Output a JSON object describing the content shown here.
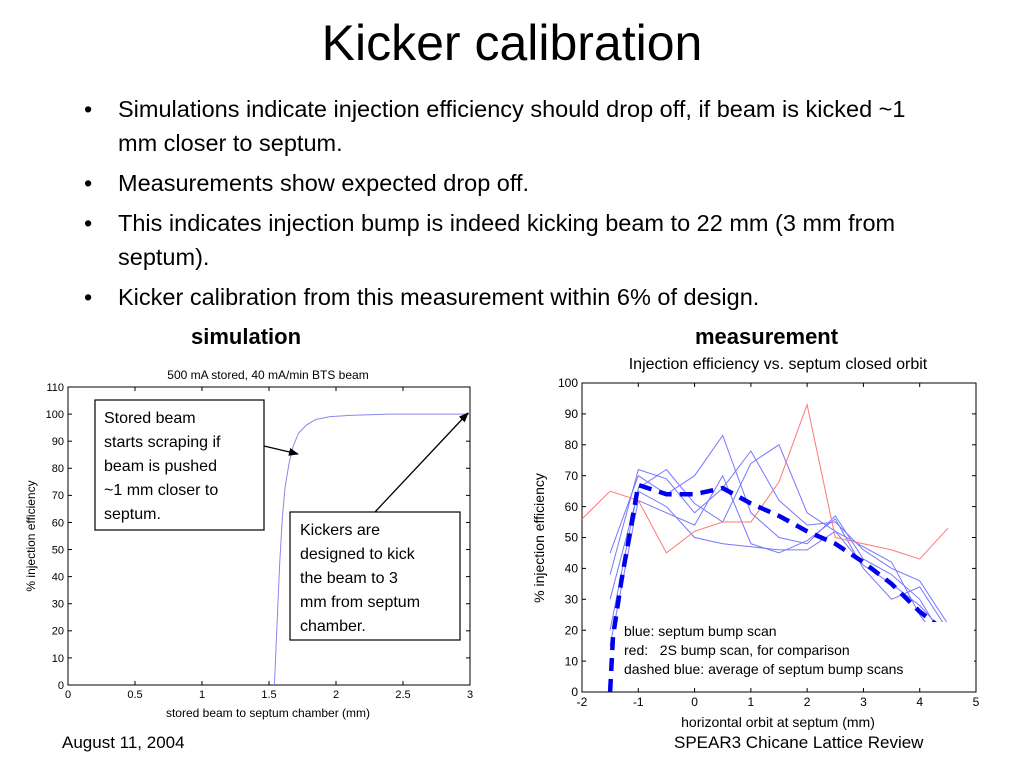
{
  "slide": {
    "title": "Kicker calibration",
    "bullets": [
      "Simulations indicate injection efficiency should drop off, if beam is kicked ~1 mm closer to septum.",
      "Measurements show expected drop off.",
      "This indicates injection bump is indeed kicking beam to 22 mm (3 mm from septum).",
      "Kicker calibration from this measurement within 6% of design."
    ],
    "bullet_symbol": "•",
    "caption_left": "simulation",
    "caption_right": "measurement",
    "footer_left": "August 11, 2004",
    "footer_right": "SPEAR3 Chicane Lattice Review"
  },
  "chart_data": [
    {
      "type": "line",
      "title": "500 mA stored, 40 mA/min BTS beam",
      "xlabel": "stored beam to septum chamber (mm)",
      "ylabel": "% injection efficiency",
      "xlim": [
        0,
        3
      ],
      "ylim": [
        0,
        110
      ],
      "xticks": [
        0,
        0.5,
        1,
        1.5,
        2,
        2.5,
        3
      ],
      "xtick_labels": [
        "0",
        "0.5",
        "1",
        "1.5",
        "2",
        "2.5",
        "3"
      ],
      "yticks": [
        0,
        10,
        20,
        30,
        40,
        50,
        60,
        70,
        80,
        90,
        100,
        110
      ],
      "ytick_labels": [
        "0",
        "10",
        "20",
        "30",
        "40",
        "50",
        "60",
        "70",
        "80",
        "90",
        "100",
        "110"
      ],
      "grid": false,
      "series": [
        {
          "color": "#8888ee",
          "x": [
            1.54,
            1.56,
            1.58,
            1.6,
            1.62,
            1.65,
            1.68,
            1.72,
            1.78,
            1.85,
            1.95,
            2.1,
            2.4,
            3.0
          ],
          "y": [
            0,
            22,
            45,
            62,
            73,
            82,
            88,
            93,
            96,
            98,
            99,
            99.5,
            100,
            100
          ]
        }
      ],
      "annotations": [
        {
          "text_lines": [
            "Stored beam",
            "starts scraping if",
            "beam is pushed",
            "~1 mm closer to",
            "septum."
          ],
          "arrow_to": [
            1.72,
            85
          ]
        },
        {
          "text_lines": [
            "Kickers are",
            "designed to kick",
            "the beam to 3",
            "mm from septum",
            "chamber."
          ],
          "arrow_to": [
            2.99,
            100
          ]
        }
      ]
    },
    {
      "type": "line",
      "title": "Injection efficiency vs. septum closed orbit",
      "xlabel": "horizontal orbit at septum (mm)",
      "ylabel": "% injection efficiency",
      "xlim": [
        -2,
        5
      ],
      "ylim": [
        0,
        100
      ],
      "xticks": [
        -2,
        -1,
        0,
        1,
        2,
        3,
        4,
        5
      ],
      "xtick_labels": [
        "-2",
        "-1",
        "0",
        "1",
        "2",
        "3",
        "4",
        "5"
      ],
      "yticks": [
        0,
        10,
        20,
        30,
        40,
        50,
        60,
        70,
        80,
        90,
        100
      ],
      "ytick_labels": [
        "0",
        "10",
        "20",
        "30",
        "40",
        "50",
        "60",
        "70",
        "80",
        "90",
        "100"
      ],
      "grid": false,
      "legend_lines": [
        "blue: septum bump scan",
        "red:   2S bump scan, for comparison",
        "dashed blue: average of septum bump scans"
      ],
      "legend_position": "bottom-right",
      "series": [
        {
          "color": "#7777ff",
          "style": "solid-thin",
          "x": [
            -1.5,
            -1.0,
            -0.5,
            0.0,
            0.5,
            1.0,
            1.5,
            2.0,
            2.5,
            3.0,
            3.5,
            4.0,
            4.5
          ],
          "y": [
            45,
            70,
            64,
            70,
            83,
            58,
            50,
            48,
            57,
            43,
            38,
            30,
            15
          ]
        },
        {
          "color": "#7777ff",
          "style": "solid-thin",
          "x": [
            -1.5,
            -1.0,
            -0.5,
            0.0,
            0.5,
            1.0,
            1.5,
            2.0,
            2.5,
            3.0,
            3.5,
            4.0,
            4.5
          ],
          "y": [
            38,
            72,
            69,
            58,
            66,
            78,
            62,
            54,
            55,
            46,
            40,
            36,
            22
          ]
        },
        {
          "color": "#7777ff",
          "style": "solid-thin",
          "x": [
            -1.5,
            -1.0,
            -0.5,
            0.0,
            0.5,
            1.0,
            1.5,
            2.0,
            2.5,
            3.0,
            3.5,
            4.0,
            4.5
          ],
          "y": [
            30,
            65,
            60,
            50,
            48,
            47,
            46,
            46,
            52,
            41,
            35,
            28,
            18
          ]
        },
        {
          "color": "#7777ff",
          "style": "solid-thin",
          "x": [
            -1.5,
            -1.0,
            -0.5,
            0.0,
            0.5,
            1.0,
            1.5,
            2.0,
            2.5,
            3.0,
            3.5,
            4.0,
            4.5
          ],
          "y": [
            20,
            66,
            72,
            61,
            55,
            74,
            80,
            58,
            52,
            47,
            42,
            25,
            13
          ]
        },
        {
          "color": "#7777ff",
          "style": "solid-thin",
          "x": [
            -1.5,
            -1.0,
            -0.5,
            0.0,
            0.5,
            1.0,
            1.5,
            2.0,
            2.5,
            3.0,
            3.5,
            4.0,
            4.5
          ],
          "y": [
            15,
            62,
            58,
            54,
            70,
            48,
            45,
            49,
            56,
            40,
            30,
            34,
            20
          ]
        },
        {
          "color": "#ff7777",
          "style": "solid-thin",
          "x": [
            -2.0,
            -1.5,
            -1.0,
            -0.5,
            0.0,
            0.5,
            1.0,
            1.5,
            2.0,
            2.5,
            3.0,
            3.5,
            4.0,
            4.5
          ],
          "y": [
            56,
            65,
            62,
            45,
            52,
            55,
            55,
            68,
            93,
            50,
            48,
            46,
            43,
            53
          ]
        },
        {
          "color": "#0000ee",
          "style": "dashed-thick",
          "name": "average",
          "x": [
            -1.5,
            -1.45,
            -1.3,
            -1.0,
            -0.5,
            0.0,
            0.5,
            1.0,
            1.5,
            2.0,
            2.5,
            3.0,
            3.5,
            4.0,
            4.5
          ],
          "y": [
            0,
            18,
            36,
            67,
            64,
            64,
            66,
            61,
            57,
            52,
            48,
            42,
            35,
            26,
            19
          ]
        }
      ]
    }
  ]
}
